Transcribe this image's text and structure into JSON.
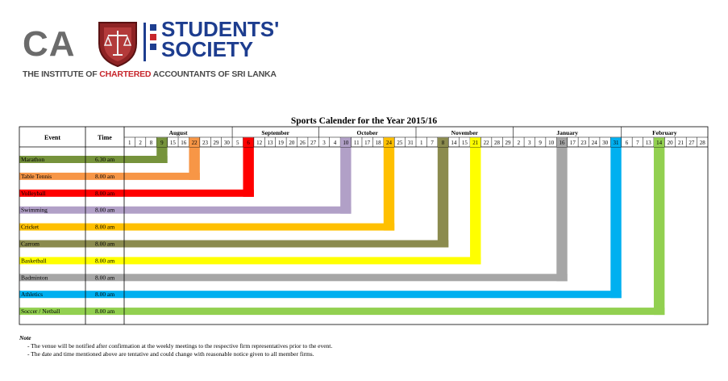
{
  "logo": {
    "ca": "CA",
    "society": [
      "STUDENTS'",
      "SOCIETY"
    ],
    "tagline_pre": "THE INSTITUTE OF ",
    "tagline_red": "CHARTERED",
    "tagline_post": " ACCOUNTANTS OF SRI LANKA"
  },
  "title": "Sports Calender for the Year 2015/16",
  "header": {
    "event": "Event",
    "time": "Time"
  },
  "months": [
    {
      "name": "August",
      "days": [
        "1",
        "2",
        "8",
        "9",
        "15",
        "16",
        "22",
        "23",
        "29",
        "30"
      ]
    },
    {
      "name": "September",
      "days": [
        "5",
        "6",
        "12",
        "13",
        "19",
        "20",
        "26",
        "27"
      ]
    },
    {
      "name": "October",
      "days": [
        "3",
        "4",
        "10",
        "11",
        "17",
        "18",
        "24",
        "25",
        "31"
      ]
    },
    {
      "name": "November",
      "days": [
        "1",
        "7",
        "8",
        "14",
        "15",
        "21",
        "22",
        "28",
        "29"
      ]
    },
    {
      "name": "January",
      "days": [
        "2",
        "3",
        "9",
        "10",
        "16",
        "17",
        "23",
        "24",
        "30",
        "31"
      ]
    },
    {
      "name": "February",
      "days": [
        "6",
        "7",
        "13",
        "14",
        "20",
        "21",
        "27",
        "28"
      ]
    }
  ],
  "events": [
    {
      "name": "Marathon",
      "time": "6.30 am",
      "color": "#76933c",
      "day_index": 3
    },
    {
      "name": "Table Tennis",
      "time": "8.00 am",
      "color": "#f79646",
      "day_index": 6
    },
    {
      "name": "Volleyball",
      "time": "8.00 am",
      "color": "#ff0000",
      "day_index": 11
    },
    {
      "name": "Swimming",
      "time": "8.00 am",
      "color": "#b1a0c7",
      "day_index": 20
    },
    {
      "name": "Cricket",
      "time": "8.00 am",
      "color": "#ffc000",
      "day_index": 24
    },
    {
      "name": "Carrom",
      "time": "8.00 am",
      "color": "#8b8b4e",
      "day_index": 29
    },
    {
      "name": "Basketball",
      "time": "8.00 am",
      "color": "#ffff00",
      "day_index": 32
    },
    {
      "name": "Badminton",
      "time": "8.00 am",
      "color": "#a6a6a6",
      "day_index": 40
    },
    {
      "name": "Athletics",
      "time": "8.00 am",
      "color": "#00b0f0",
      "day_index": 45
    },
    {
      "name": "Soccer / Netball",
      "time": "8.00 am",
      "color": "#92d050",
      "day_index": 49
    }
  ],
  "note": {
    "title": "Note",
    "lines": [
      "- The venue will be notified after confirmation at the weekly meetings to the respective firm representatives prior to the event.",
      "- The date and time mentioned above are tentative and could change with reasonable notice given to all member firms."
    ]
  }
}
